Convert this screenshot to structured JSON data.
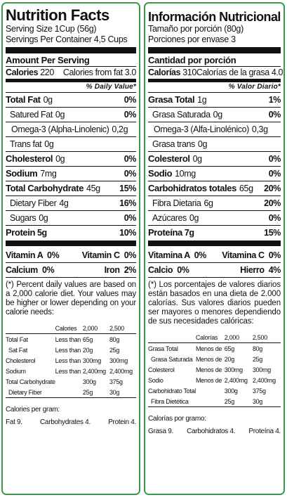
{
  "colors": {
    "border": "#3a9a4a",
    "ink": "#111111"
  },
  "en": {
    "title": "Nutrition Facts",
    "serving_size": "Serving Size  1Cup (56g)",
    "servings_per_container": "Servings Per Container  4,5 Cups",
    "amount_per_serving": "Amount Per Serving",
    "calories_label": "Calories",
    "calories_value": "220",
    "calories_fat": "Calories from fat 3.0",
    "dv_header": "% Daily Value*",
    "nutrients": [
      {
        "name": "Total Fat",
        "amount": "0g",
        "pct": "0%"
      },
      {
        "name": "Satured Fat",
        "amount": "0g",
        "pct": "0%"
      },
      {
        "name": "Omega-3 (Alpha-Linolenic)",
        "amount": "0,2g",
        "pct": ""
      },
      {
        "name": "Trans fat",
        "amount": "0g",
        "pct": ""
      },
      {
        "name": "Cholesterol",
        "amount": "0g",
        "pct": "0%"
      },
      {
        "name": "Sodium",
        "amount": "7mg",
        "pct": "0%"
      },
      {
        "name": "Total Carbohydrate",
        "amount": "45g",
        "pct": "15%"
      },
      {
        "name": "Dietary Fiber",
        "amount": "4g",
        "pct": "16%"
      },
      {
        "name": "Sugars",
        "amount": "0g",
        "pct": "0%"
      },
      {
        "name": "Protein",
        "amount": "5g",
        "pct": "10%"
      }
    ],
    "vitamins": [
      {
        "left": "Vitamin A  0%",
        "right": "Vitamin C  0%"
      },
      {
        "left": "Calcium  0%",
        "right": "Iron  2%"
      }
    ],
    "footnote": "(*) Percent daily values are based on a 2,000 calorie diet. Your values may be higher or lower depending on your calorie needs:",
    "table_header": [
      "",
      "Calories",
      "2,000",
      "2,500"
    ],
    "table_rows": [
      [
        "Total Fat",
        "Less than",
        "65g",
        "80g"
      ],
      [
        "Sat Fat",
        "Less than",
        "20g",
        "25g"
      ],
      [
        "Cholesterol",
        "Less than",
        "300mg",
        "300mg"
      ],
      [
        "Sodium",
        "Less than",
        "2,400mg",
        "2,400mg"
      ],
      [
        "Total Carbohydrate",
        "",
        "300g",
        "375g"
      ],
      [
        "Dietary Fiber",
        "",
        "25g",
        "30g"
      ]
    ],
    "calories_per_gram": "Calories per gram:",
    "cpg_values": [
      "Fat 9.",
      "Carbohydrates 4.",
      "Protein 4."
    ]
  },
  "es": {
    "title": "Información Nutricional",
    "serving_size": "Tamaño por porción  (80g)",
    "servings_per_container": "Porciones por envase 3",
    "amount_per_serving": "Cantidad por porción",
    "calories_label": "Calorías",
    "calories_value": "310",
    "calories_fat": "Calorías de la grasa  4.0",
    "dv_header": "% Valor Diario*",
    "nutrients": [
      {
        "name": "Grasa Total",
        "amount": "1g",
        "pct": "1%"
      },
      {
        "name": "Grasa Saturada",
        "amount": "0g",
        "pct": "0%"
      },
      {
        "name": "Omega-3 (Alfa-Linolénico)",
        "amount": "0,3g",
        "pct": ""
      },
      {
        "name": "Grasa trans",
        "amount": "0g",
        "pct": ""
      },
      {
        "name": "Colesterol",
        "amount": "0g",
        "pct": "0%"
      },
      {
        "name": "Sodio",
        "amount": "10mg",
        "pct": "0%"
      },
      {
        "name": "Carbohidratos totales",
        "amount": "65g",
        "pct": "20%"
      },
      {
        "name": "Fibra Dietaria",
        "amount": "6g",
        "pct": "20%"
      },
      {
        "name": "Azúcares",
        "amount": "0g",
        "pct": "0%"
      },
      {
        "name": "Proteína",
        "amount": "7g",
        "pct": "15%"
      }
    ],
    "vitamins": [
      {
        "left": "Vitamina A  0%",
        "right": "Vitamina C  0%"
      },
      {
        "left": "Calcio  0%",
        "right": "Hierro  4%"
      }
    ],
    "footnote": "(*) Los porcentajes de valores diarios están basados en una dieta de 2.000 calorías. Sus valores diarios pueden ser mayores o menores dependiendo de sus necesidades calóricas:",
    "table_header": [
      "",
      "Calorías",
      "2,000",
      "2,500"
    ],
    "table_rows": [
      [
        "Grasa Total",
        "Menos de",
        "65g",
        "80g"
      ],
      [
        "Grasa Saturada",
        "Menos de",
        "20g",
        "25g"
      ],
      [
        "Colesterol",
        "Menos de",
        "300mg",
        "300mg"
      ],
      [
        "Sodio",
        "Menos de",
        "2,400mg",
        "2,400mg"
      ],
      [
        "Carbohidrato Total",
        "",
        "300g",
        "375g"
      ],
      [
        "Fibra Dietética",
        "",
        "25g",
        "30g"
      ]
    ],
    "calories_per_gram": "Calorías por gramo:",
    "cpg_values": [
      "Grasa 9.",
      "Carbohidratos 4.",
      "Proteína 4."
    ]
  }
}
